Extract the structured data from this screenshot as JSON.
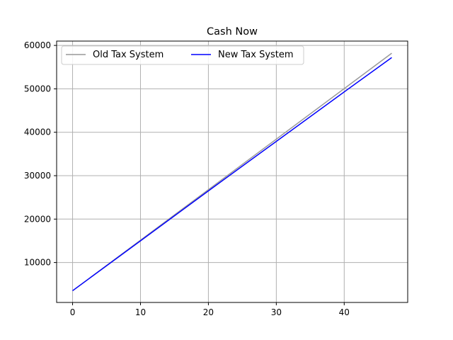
{
  "chart_data": {
    "type": "line",
    "title": "Cash Now",
    "xlabel": "",
    "ylabel": "",
    "xlim": [
      -2.35,
      49.35
    ],
    "ylim": [
      800,
      61000
    ],
    "x_ticks": [
      0,
      10,
      20,
      30,
      40
    ],
    "y_ticks": [
      10000,
      20000,
      30000,
      40000,
      50000,
      60000
    ],
    "grid": true,
    "legend_position": "top-left",
    "series": [
      {
        "name": "Old Tax System",
        "color": "#999999",
        "x": [
          0,
          47
        ],
        "y": [
          3500,
          58200
        ]
      },
      {
        "name": "New Tax System",
        "color": "#0000ff",
        "x": [
          0,
          10,
          20,
          30,
          40,
          47
        ],
        "y": [
          3500,
          15000,
          26500,
          37900,
          49300,
          57200
        ]
      }
    ]
  }
}
